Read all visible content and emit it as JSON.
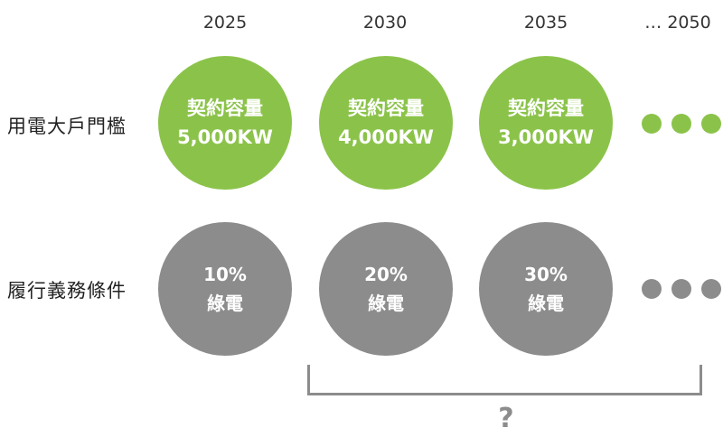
{
  "years": [
    "2025",
    "2030",
    "2035",
    "… 2050"
  ],
  "rows": [
    {
      "label": "用電大戶門檻",
      "cells": [
        {
          "line1": "契約容量",
          "line2": "5,000KW"
        },
        {
          "line1": "契約容量",
          "line2": "4,000KW"
        },
        {
          "line1": "契約容量",
          "line2": "3,000KW"
        }
      ],
      "color": "#8bc34a"
    },
    {
      "label": "履行義務條件",
      "cells": [
        {
          "line1": "10%",
          "line2": "綠電"
        },
        {
          "line1": "20%",
          "line2": "綠電"
        },
        {
          "line1": "30%",
          "line2": "綠電"
        }
      ],
      "color": "#8c8c8c"
    }
  ],
  "bracket_label": "?"
}
